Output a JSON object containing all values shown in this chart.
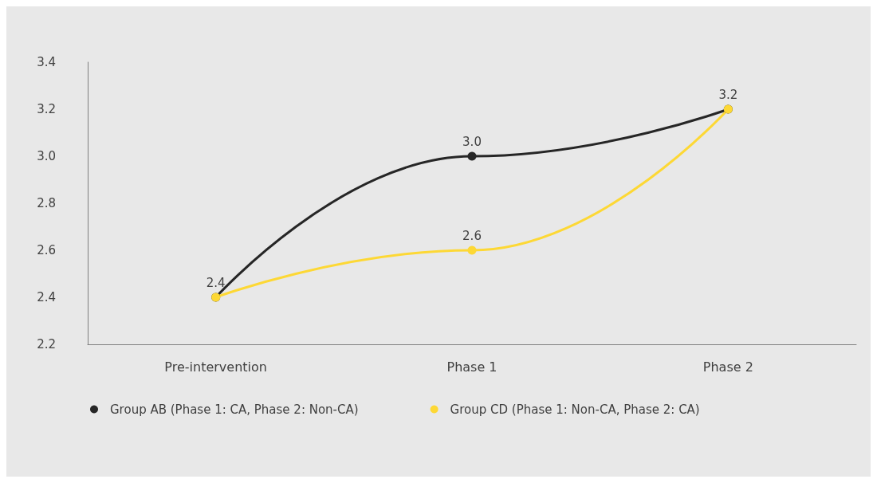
{
  "chart_data": {
    "type": "line",
    "categories": [
      "Pre-intervention",
      "Phase 1",
      "Phase 2"
    ],
    "series": [
      {
        "name": "Group AB (Phase 1: CA, Phase 2: Non-CA)",
        "color": "#262626",
        "values": [
          2.4,
          3.0,
          3.2
        ],
        "value_labels": [
          "2.4",
          "3.0",
          "3.2"
        ]
      },
      {
        "name": "Group CD (Phase 1: Non-CA, Phase 2: CA)",
        "color": "#fdd835",
        "values": [
          2.4,
          2.6,
          3.2
        ],
        "value_labels": [
          null,
          "2.6",
          null
        ]
      }
    ],
    "ylim": [
      2.2,
      3.4
    ],
    "yticks": [
      2.2,
      2.4,
      2.6,
      2.8,
      {
        "value": 3.0,
        "label": "3.0"
      },
      3.2,
      3.4
    ],
    "grid": false,
    "legend": "bottom",
    "marker": "circle",
    "line_style": "solid"
  }
}
